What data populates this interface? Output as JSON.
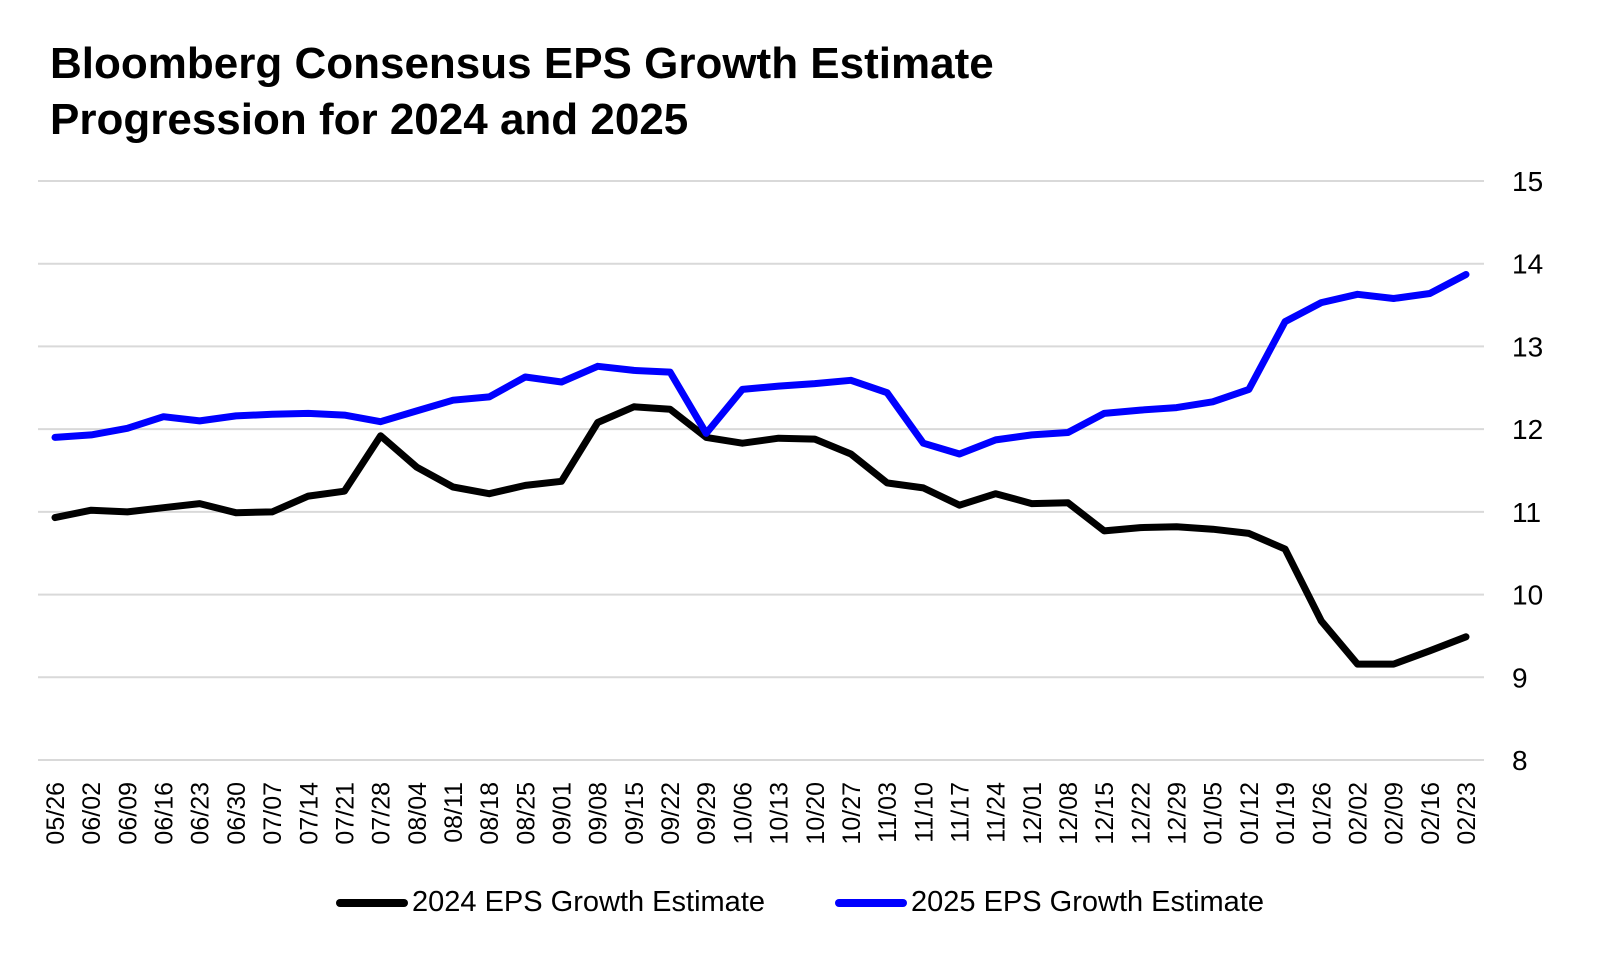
{
  "chart_data": {
    "type": "line",
    "title": "Bloomberg Consensus EPS Growth Estimate Progression for 2024 and 2025",
    "title_lines": [
      "Bloomberg Consensus EPS Growth Estimate",
      "Progression for 2024 and 2025"
    ],
    "xlabel": "",
    "ylabel": "",
    "ylim": [
      8,
      15
    ],
    "yticks": [
      8,
      9,
      10,
      11,
      12,
      13,
      14,
      15
    ],
    "y_axis_side": "right",
    "grid": true,
    "legend_position": "bottom",
    "categories": [
      "05/26",
      "06/02",
      "06/09",
      "06/16",
      "06/23",
      "06/30",
      "07/07",
      "07/14",
      "07/21",
      "07/28",
      "08/04",
      "08/11",
      "08/18",
      "08/25",
      "09/01",
      "09/08",
      "09/15",
      "09/22",
      "09/29",
      "10/06",
      "10/13",
      "10/20",
      "10/27",
      "11/03",
      "11/10",
      "11/17",
      "11/24",
      "12/01",
      "12/08",
      "12/15",
      "12/22",
      "12/29",
      "01/05",
      "01/12",
      "01/19",
      "01/26",
      "02/02",
      "02/09",
      "02/16",
      "02/23"
    ],
    "series": [
      {
        "name": "2024 EPS Growth Estimate",
        "color": "#000000",
        "values": [
          10.93,
          11.02,
          11.0,
          11.05,
          11.1,
          10.99,
          11.0,
          11.19,
          11.25,
          11.92,
          11.54,
          11.3,
          11.22,
          11.32,
          11.37,
          12.08,
          12.27,
          12.24,
          11.9,
          11.83,
          11.89,
          11.88,
          11.7,
          11.35,
          11.29,
          11.08,
          11.22,
          11.1,
          11.11,
          10.77,
          10.81,
          10.82,
          10.79,
          10.74,
          10.55,
          9.68,
          9.16,
          9.16,
          9.32,
          9.49
        ]
      },
      {
        "name": "2025 EPS Growth Estimate",
        "color": "#0000ff",
        "values": [
          11.9,
          11.93,
          12.01,
          12.15,
          12.1,
          12.16,
          12.18,
          12.19,
          12.17,
          12.09,
          12.22,
          12.35,
          12.39,
          12.63,
          12.57,
          12.76,
          12.71,
          12.69,
          11.95,
          12.48,
          12.52,
          12.55,
          12.59,
          12.44,
          11.83,
          11.7,
          11.87,
          11.93,
          11.96,
          12.19,
          12.23,
          12.26,
          12.33,
          12.48,
          13.3,
          13.53,
          13.63,
          13.58,
          13.64,
          13.87
        ]
      }
    ]
  }
}
